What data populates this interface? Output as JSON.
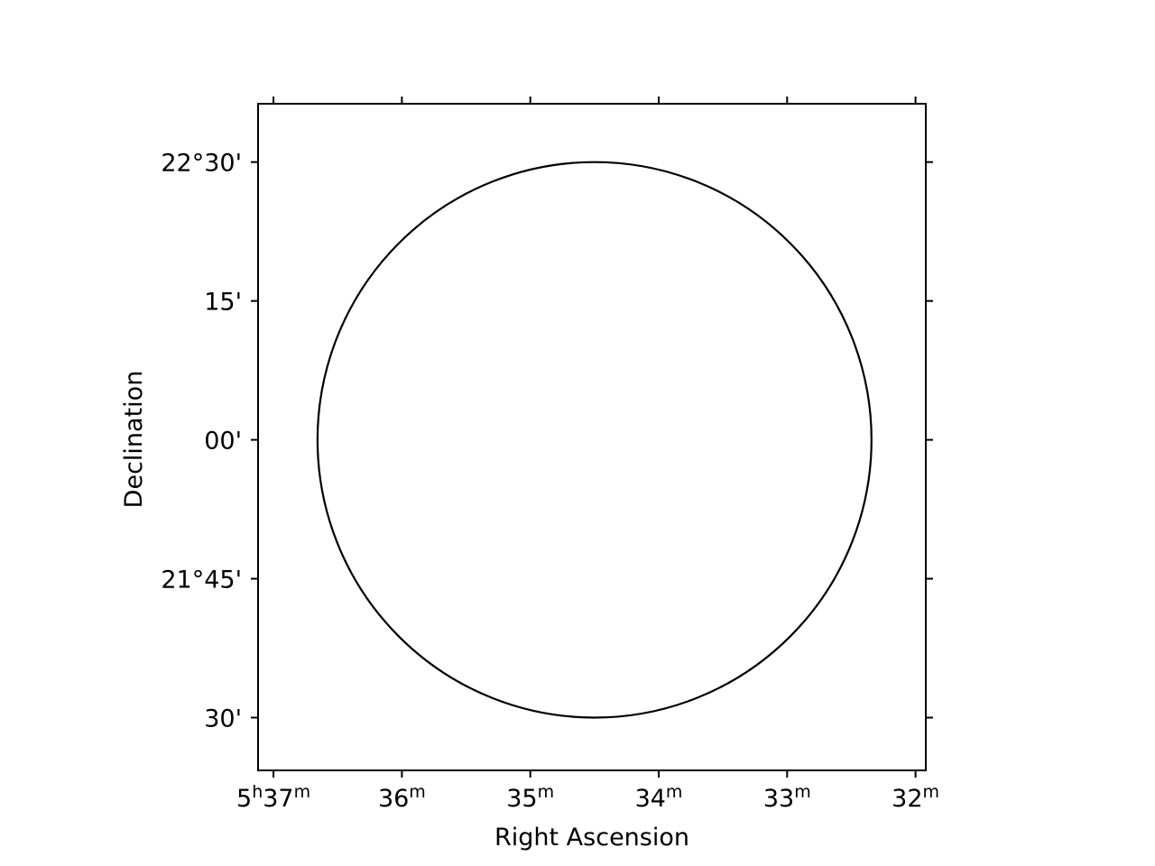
{
  "chart_data": {
    "type": "scatter",
    "xlabel": "Right Ascension",
    "ylabel": "Declination",
    "x_ticks": [
      {
        "value_min": 37,
        "prefix": "5",
        "prefix_sup": "h",
        "main": "37",
        "sup": "m"
      },
      {
        "value_min": 36,
        "prefix": "",
        "prefix_sup": "",
        "main": "36",
        "sup": "m"
      },
      {
        "value_min": 35,
        "prefix": "",
        "prefix_sup": "",
        "main": "35",
        "sup": "m"
      },
      {
        "value_min": 34,
        "prefix": "",
        "prefix_sup": "",
        "main": "34",
        "sup": "m"
      },
      {
        "value_min": 33,
        "prefix": "",
        "prefix_sup": "",
        "main": "33",
        "sup": "m"
      },
      {
        "value_min": 32,
        "prefix": "",
        "prefix_sup": "",
        "main": "32",
        "sup": "m"
      }
    ],
    "y_ticks": [
      {
        "value_deg": 22.5,
        "label": "22°30'"
      },
      {
        "value_deg": 22.25,
        "label": "15'"
      },
      {
        "value_deg": 22.0,
        "label": "00'"
      },
      {
        "value_deg": 21.75,
        "label": "21°45'"
      },
      {
        "value_deg": 21.5,
        "label": "30'"
      }
    ],
    "xlim_ra_min": [
      37.12,
      31.92
    ],
    "ylim_dec_deg": [
      21.405,
      22.605
    ],
    "circle": {
      "center_ra_min": 34.5,
      "center_dec_deg": 22.0,
      "radius_deg": 0.5,
      "color": "#000000"
    },
    "grid": false
  }
}
